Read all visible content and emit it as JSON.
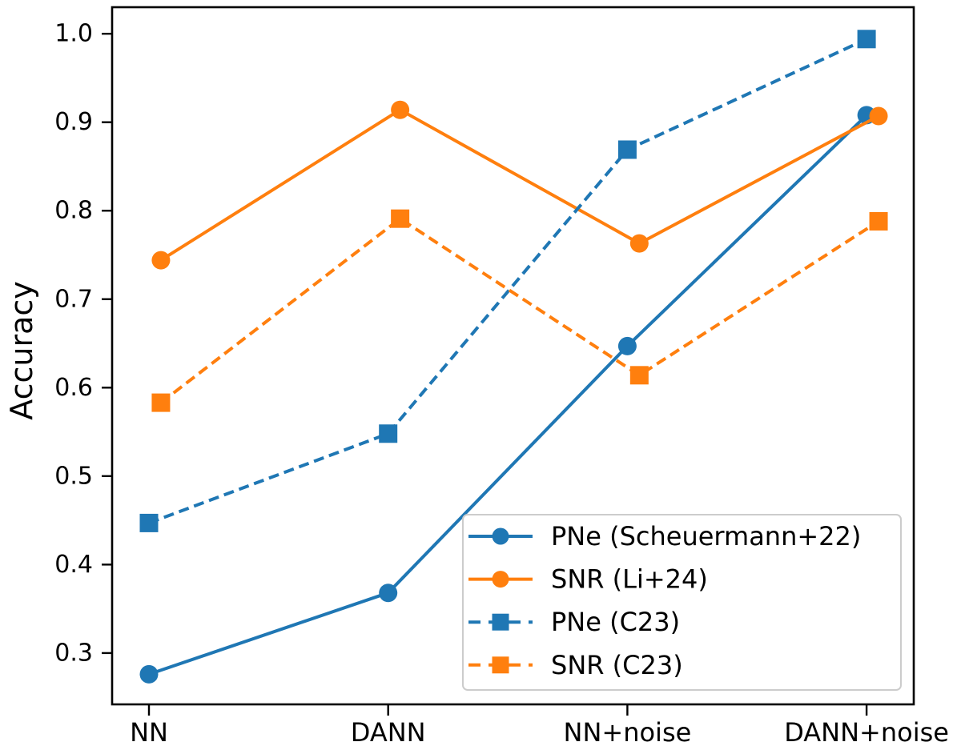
{
  "chart_data": {
    "type": "line",
    "title": "",
    "xlabel": "",
    "ylabel": "Accuracy",
    "categories": [
      "NN",
      "DANN",
      "NN+noise",
      "DANN+noise"
    ],
    "y_ticks": [
      0.3,
      0.4,
      0.5,
      0.6,
      0.7,
      0.8,
      0.9,
      1.0
    ],
    "y_tick_labels": [
      "0.3",
      "0.4",
      "0.5",
      "0.6",
      "0.7",
      "0.8",
      "0.9",
      "1.0"
    ],
    "ylim": [
      0.242,
      1.03
    ],
    "grid": false,
    "legend_position": "lower right inside",
    "colors": {
      "blue": "#1f77b4",
      "orange": "#ff7f0e"
    },
    "series": [
      {
        "name": "PNe (Scheuermann+22)",
        "color": "#1f77b4",
        "line_style": "solid",
        "marker": "circle",
        "x_offset": 0,
        "values": [
          0.276,
          0.368,
          0.647,
          0.908
        ]
      },
      {
        "name": "SNR (Li+24)",
        "color": "#ff7f0e",
        "line_style": "solid",
        "marker": "circle",
        "x_offset": 0.05,
        "values": [
          0.744,
          0.914,
          0.763,
          0.907
        ]
      },
      {
        "name": "PNe (C23)",
        "color": "#1f77b4",
        "line_style": "dashed",
        "marker": "square",
        "x_offset": 0,
        "values": [
          0.447,
          0.548,
          0.869,
          0.994
        ]
      },
      {
        "name": "SNR (C23)",
        "color": "#ff7f0e",
        "line_style": "dashed",
        "marker": "square",
        "x_offset": 0.05,
        "values": [
          0.583,
          0.791,
          0.614,
          0.788
        ]
      }
    ]
  }
}
